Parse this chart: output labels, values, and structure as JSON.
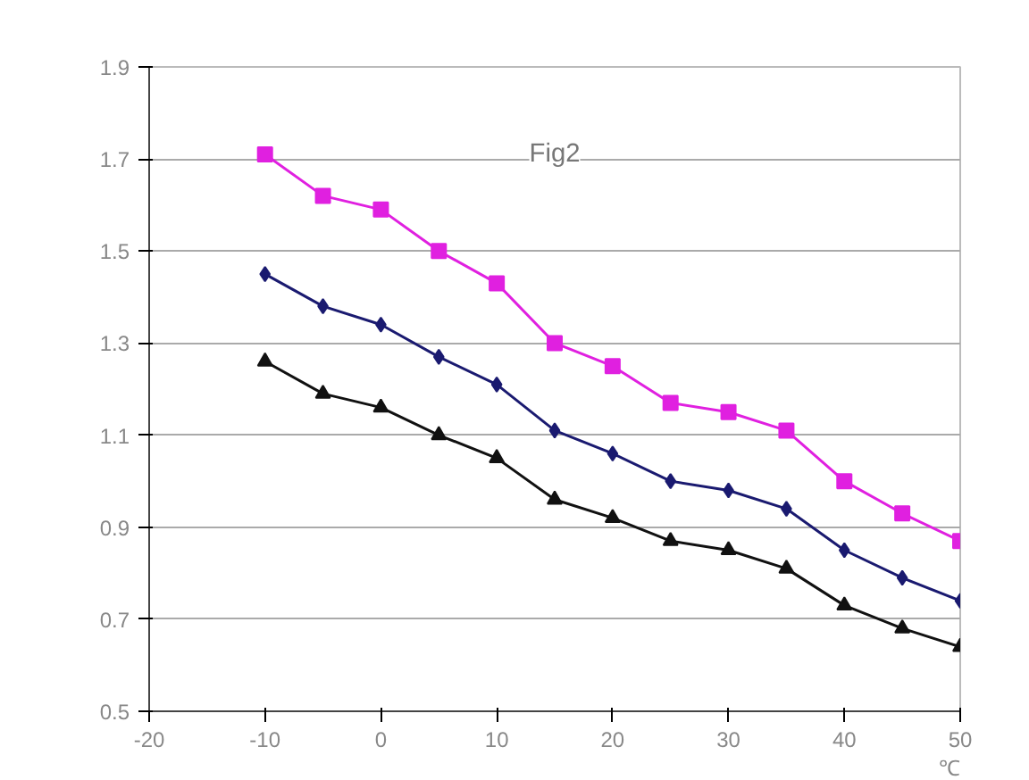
{
  "chart_data": {
    "type": "line",
    "title": "Fig2",
    "annotations": [
      "℃"
    ],
    "x": [
      -10,
      -5,
      0,
      5,
      10,
      15,
      20,
      25,
      30,
      35,
      40,
      45,
      50
    ],
    "xlim": [
      -20,
      50
    ],
    "xticks": [
      -20,
      -10,
      0,
      10,
      20,
      30,
      40,
      50
    ],
    "ylim": [
      0.5,
      1.9
    ],
    "yticks": [
      0.5,
      0.7,
      0.9,
      1.1,
      1.3,
      1.5,
      1.7,
      1.9
    ],
    "grid": "y",
    "series": [
      {
        "color": "#1a1a70",
        "marker": "diamond",
        "values": [
          1.45,
          1.38,
          1.34,
          1.27,
          1.21,
          1.11,
          1.06,
          1.0,
          0.98,
          0.94,
          0.85,
          0.79,
          0.74
        ]
      },
      {
        "color": "#e020e0",
        "marker": "square",
        "values": [
          1.71,
          1.62,
          1.59,
          1.5,
          1.43,
          1.3,
          1.25,
          1.17,
          1.15,
          1.11,
          1.0,
          0.93,
          0.87
        ]
      },
      {
        "color": "#111111",
        "marker": "triangle",
        "values": [
          1.26,
          1.19,
          1.16,
          1.1,
          1.05,
          0.96,
          0.92,
          0.87,
          0.85,
          0.81,
          0.73,
          0.68,
          0.64
        ]
      }
    ]
  }
}
